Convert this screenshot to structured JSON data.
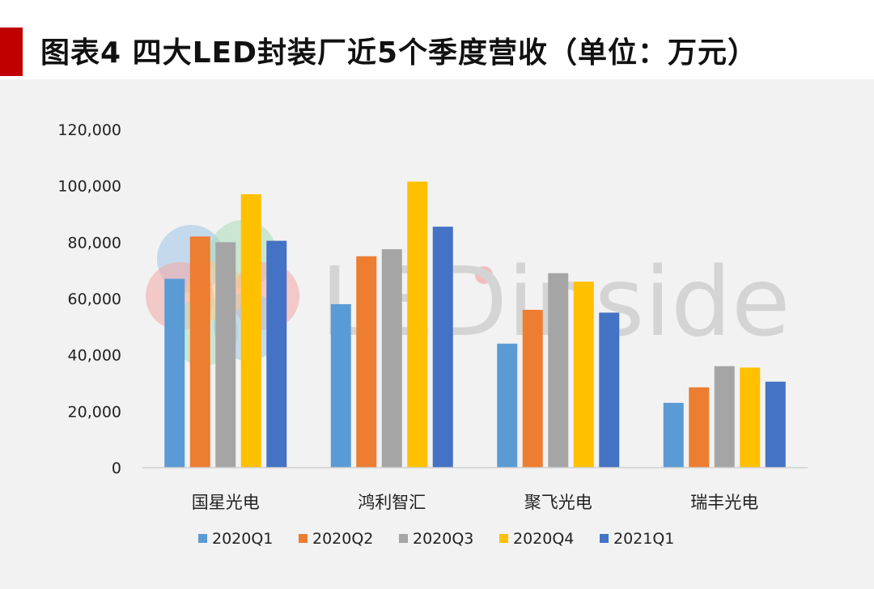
{
  "title": "图表4  四大LED封装厂近5个季度营收（单位：万元）",
  "watermark": "LEDinside",
  "colors": {
    "accent": "#c00000",
    "series": [
      "#5b9bd5",
      "#ed7d31",
      "#a5a5a5",
      "#ffc000",
      "#4472c4"
    ]
  },
  "chart_data": {
    "type": "bar",
    "title": "图表4  四大LED封装厂近5个季度营收（单位：万元）",
    "xlabel": "",
    "ylabel": "",
    "ylim": [
      0,
      120000
    ],
    "yticks": [
      0,
      20000,
      40000,
      60000,
      80000,
      100000,
      120000
    ],
    "ytick_labels": [
      "0",
      "20,000",
      "40,000",
      "60,000",
      "80,000",
      "100,000",
      "120,000"
    ],
    "grid": false,
    "legend_position": "bottom",
    "categories": [
      "国星光电",
      "鸿利智汇",
      "聚飞光电",
      "瑞丰光电"
    ],
    "series": [
      {
        "name": "2020Q1",
        "values": [
          67000,
          58000,
          44000,
          23000
        ]
      },
      {
        "name": "2020Q2",
        "values": [
          82000,
          75000,
          56000,
          28500
        ]
      },
      {
        "name": "2020Q3",
        "values": [
          80000,
          77500,
          69000,
          36000
        ]
      },
      {
        "name": "2020Q4",
        "values": [
          97000,
          101500,
          66000,
          35500
        ]
      },
      {
        "name": "2021Q1",
        "values": [
          80500,
          85500,
          55000,
          30500
        ]
      }
    ]
  }
}
